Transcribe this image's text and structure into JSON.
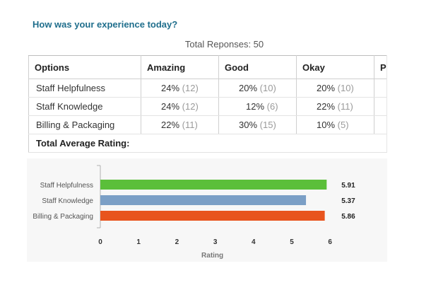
{
  "survey": {
    "question": "How was your experience today?",
    "total_responses": "Total Reponses: 50"
  },
  "table": {
    "headers": [
      "Options",
      "Amazing",
      "Good",
      "Okay",
      "Po"
    ],
    "rows": [
      {
        "option": "Staff Helpfulness",
        "cells": [
          {
            "pct": "24%",
            "count": "(12)"
          },
          {
            "pct": "20%",
            "count": "(10)"
          },
          {
            "pct": "20%",
            "count": "(10)"
          },
          {
            "pct": "",
            "count": ""
          }
        ]
      },
      {
        "option": "Staff Knowledge",
        "cells": [
          {
            "pct": "24%",
            "count": "(12)"
          },
          {
            "pct": "12%",
            "count": "(6)"
          },
          {
            "pct": "22%",
            "count": "(11)"
          },
          {
            "pct": "",
            "count": ""
          }
        ]
      },
      {
        "option": "Billing & Packaging",
        "cells": [
          {
            "pct": "22%",
            "count": "(11)"
          },
          {
            "pct": "30%",
            "count": "(15)"
          },
          {
            "pct": "10%",
            "count": "(5)"
          },
          {
            "pct": "",
            "count": ""
          }
        ]
      }
    ],
    "footer_label": "Total Average Rating:"
  },
  "chart_data": {
    "type": "bar",
    "orientation": "horizontal",
    "categories": [
      "Staff Helpfulness",
      "Staff Knowledge",
      "Billing & Packaging"
    ],
    "values": [
      5.91,
      5.37,
      5.86
    ],
    "data_labels": [
      "5.91",
      "5.37",
      "5.86"
    ],
    "colors": [
      "#5bbf3a",
      "#7b9fc6",
      "#e8541e"
    ],
    "xlabel": "Rating",
    "xticks": [
      0,
      1,
      2,
      3,
      4,
      5,
      6
    ],
    "xlim": [
      0,
      6
    ],
    "grid": false
  }
}
